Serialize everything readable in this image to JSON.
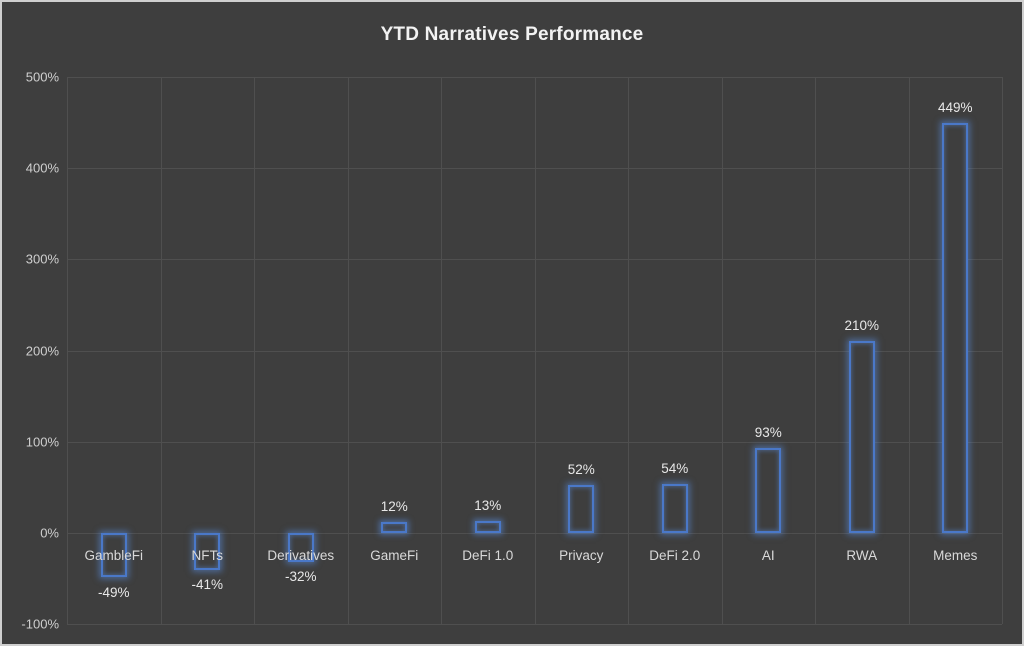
{
  "chart": {
    "title": "YTD Narratives Performance"
  },
  "chart_data": {
    "type": "bar",
    "title": "YTD Narratives Performance",
    "categories": [
      "GambleFi",
      "NFTs",
      "Derivatives",
      "GameFi",
      "DeFi 1.0",
      "Privacy",
      "DeFi 2.0",
      "AI",
      "RWA",
      "Memes"
    ],
    "values": [
      -49,
      -41,
      -32,
      12,
      13,
      52,
      54,
      93,
      210,
      449
    ],
    "value_labels": [
      "-49%",
      "-41%",
      "-32%",
      "12%",
      "13%",
      "52%",
      "54%",
      "93%",
      "210%",
      "449%"
    ],
    "xlabel": "",
    "ylabel": "",
    "ylim": [
      -100,
      500
    ],
    "ytick_step": 100,
    "ytick_labels": [
      "500%",
      "400%",
      "300%",
      "200%",
      "100%",
      "0%",
      "-100%"
    ],
    "grid": true,
    "legend": false,
    "colors": {
      "background": "#3e3e3e",
      "bar_outline": "#4a78c8",
      "bar_glow": "#5a8cdc",
      "gridline": "#4f4f4f",
      "tick_text": "#cfcfcf",
      "label_text": "#e8e8e8",
      "title_text": "#f2f2f2",
      "frame": "#cfcfcf"
    }
  }
}
